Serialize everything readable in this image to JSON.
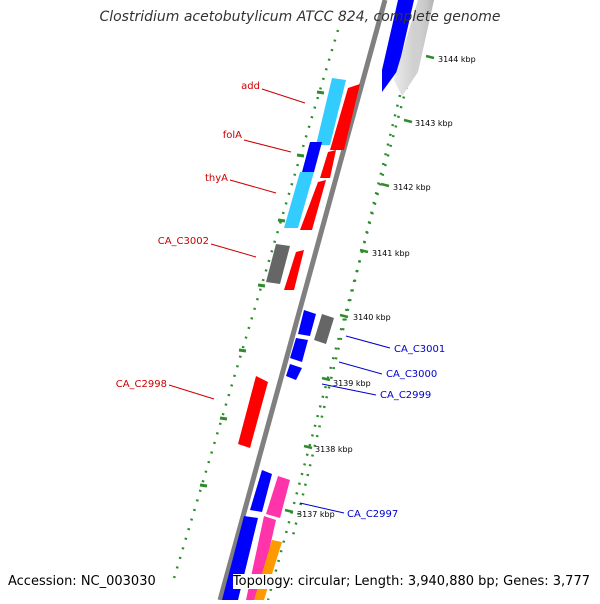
{
  "map": {
    "title": "Clostridium acetobutylicum ATCC 824, complete genome",
    "accession": "Accession: NC_003030",
    "topology": "Topology: circular; Length: 3,940,880 bp; Genes: 3,777",
    "colors": {
      "backbone": "#808080",
      "ticks": "#2e8b2e",
      "label_red": "#cc0000",
      "label_blue": "#0000cc",
      "gene_red": "#ff0000",
      "gene_blue": "#0000ff",
      "gene_cyan": "#33ccff",
      "gene_gray": "#666666",
      "gene_lightgray": "#d0d0d0",
      "gene_pink": "#ff33aa",
      "gene_orange": "#ff9900"
    },
    "kbp_labels": [
      "3144 kbp",
      "3143 kbp",
      "3142 kbp",
      "3141 kbp",
      "3140 kbp",
      "3139 kbp",
      "3138 kbp",
      "3137 kbp"
    ],
    "gene_labels_red": [
      "add",
      "folA",
      "thyA",
      "CA_C3002",
      "CA_C2998"
    ],
    "gene_labels_blue": [
      "CA_C3001",
      "CA_C3000",
      "CA_C2999",
      "CA_C2997"
    ]
  }
}
